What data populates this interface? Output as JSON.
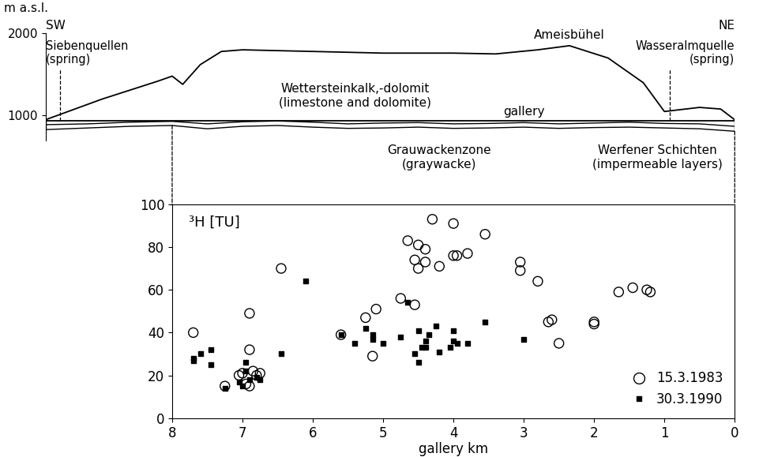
{
  "chart_data": [
    {
      "type": "profile",
      "ylabel": "m a.s.l.",
      "ylim": [
        700,
        2000
      ],
      "yticks": [
        1000,
        2000
      ],
      "xlim": [
        9.8,
        0
      ],
      "tick_labels": "y",
      "sw_label": "SW",
      "ne_label": "NE",
      "x": [
        9.8,
        9.0,
        8.2,
        8.0,
        7.85,
        7.6,
        7.3,
        7.0,
        6.0,
        5.0,
        4.0,
        3.4,
        2.8,
        2.35,
        1.8,
        1.3,
        1.0,
        0.8,
        0.5,
        0.2,
        0.0
      ],
      "values": [
        950,
        1200,
        1420,
        1480,
        1380,
        1620,
        1780,
        1800,
        1780,
        1760,
        1760,
        1750,
        1800,
        1850,
        1700,
        1400,
        1050,
        1070,
        1100,
        1080,
        950
      ],
      "peak": "Ameisbühel",
      "gallery": {
        "label": "gallery",
        "elevation": 940,
        "x": 3.0
      },
      "springs": [
        {
          "name": "Siebenquellen",
          "note": "(spring)",
          "x": 9.6
        },
        {
          "name": "Wasseralmquelle",
          "note": "(spring)",
          "x": 0.92
        }
      ],
      "units_above": [
        {
          "label": "Wettersteinkalk,-dolomit",
          "note": "(limestone and dolomite)",
          "x": 5.4
        }
      ],
      "units_below": [
        {
          "label": "Grauwackenzone",
          "note": "(graywacke)",
          "x": 4.2
        },
        {
          "label": "Werfener Schichten",
          "note": "(impermeable layers)",
          "x": 1.1
        }
      ],
      "layers": {
        "x": [
          9.8,
          9.2,
          8.6,
          8.0,
          7.5,
          7.0,
          6.5,
          6.0,
          5.5,
          5.0,
          4.5,
          4.0,
          3.5,
          3.0,
          2.5,
          2.0,
          1.5,
          1.0,
          0.5,
          0.0
        ],
        "top": [
          890,
          900,
          920,
          930,
          900,
          925,
          935,
          920,
          900,
          910,
          915,
          900,
          905,
          915,
          900,
          910,
          920,
          905,
          900,
          870
        ],
        "bottom": [
          830,
          850,
          870,
          880,
          840,
          870,
          880,
          860,
          845,
          850,
          860,
          845,
          850,
          860,
          845,
          855,
          860,
          850,
          840,
          810
        ]
      }
    },
    {
      "type": "scatter",
      "ylabel": "³H [TU]",
      "xlabel": "gallery km",
      "xlim": [
        8,
        0
      ],
      "xticks": [
        8,
        7,
        6,
        5,
        4,
        3,
        2,
        1,
        0
      ],
      "ylim": [
        0,
        100
      ],
      "yticks": [
        0,
        20,
        40,
        60,
        80,
        100
      ],
      "legend": "lower right",
      "series": [
        {
          "name": "15.3.1983",
          "color": "#000000",
          "marker": "circle",
          "x": [
            7.7,
            7.25,
            7.05,
            7.0,
            6.95,
            6.9,
            6.9,
            6.85,
            6.8,
            6.75,
            6.9,
            6.45,
            5.6,
            5.25,
            5.15,
            5.1,
            4.75,
            4.65,
            4.55,
            4.55,
            4.5,
            4.5,
            4.4,
            4.4,
            4.3,
            4.2,
            4.0,
            4.0,
            3.95,
            3.8,
            3.55,
            3.05,
            3.05,
            2.8,
            2.65,
            2.6,
            2.5,
            2.0,
            2.0,
            1.65,
            1.45,
            1.25,
            1.2
          ],
          "values": [
            40,
            15,
            20,
            21,
            16,
            49,
            32,
            22,
            20,
            21,
            15,
            70,
            39,
            47,
            29,
            51,
            56,
            83,
            74,
            53,
            81,
            70,
            73,
            79,
            93,
            71,
            91,
            76,
            76,
            77,
            86,
            73,
            69,
            64,
            45,
            46,
            35,
            45,
            44,
            59,
            61,
            60,
            59
          ]
        },
        {
          "name": "30.3.1990",
          "color": "#000000",
          "marker": "square",
          "x": [
            7.7,
            7.7,
            7.6,
            7.45,
            7.45,
            7.25,
            7.05,
            7.0,
            6.95,
            6.95,
            6.9,
            6.8,
            6.75,
            6.45,
            6.1,
            5.6,
            5.4,
            5.25,
            5.15,
            5.15,
            5.0,
            4.75,
            4.65,
            4.55,
            4.5,
            4.5,
            4.45,
            4.4,
            4.35,
            4.4,
            4.25,
            4.2,
            4.05,
            4.0,
            4.0,
            3.95,
            3.8,
            3.55,
            3.0
          ],
          "values": [
            27,
            28,
            30,
            25,
            32,
            14,
            17,
            15,
            26,
            22,
            18,
            19,
            18,
            30,
            64,
            39,
            35,
            42,
            37,
            39,
            35,
            38,
            54,
            30,
            41,
            26,
            33,
            36,
            39,
            33,
            43,
            31,
            33,
            41,
            36,
            35,
            35,
            45,
            37
          ]
        }
      ]
    }
  ]
}
